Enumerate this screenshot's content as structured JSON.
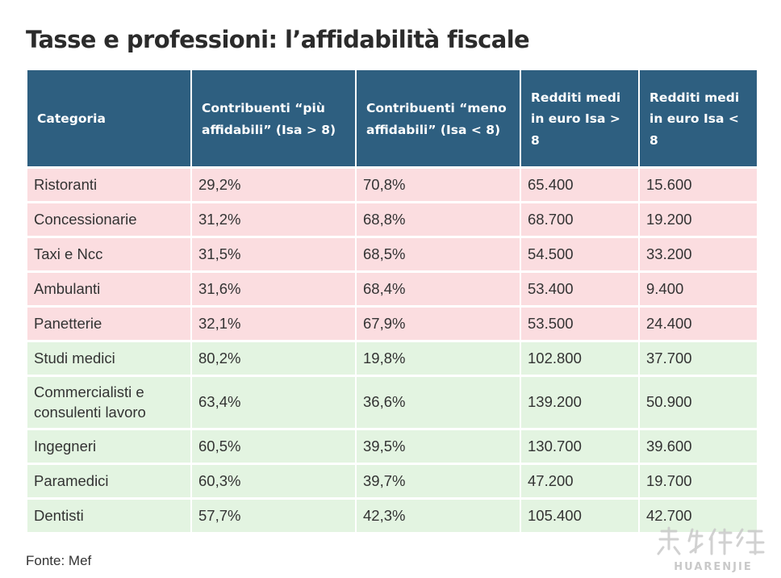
{
  "title": "Tasse e professioni: l’affidabilità fiscale",
  "source": "Fonte: Mef",
  "colors": {
    "header_bg": "#2e5f80",
    "header_text": "#ffffff",
    "row_low_reliability": "#fbdde0",
    "row_high_reliability": "#e3f4e1"
  },
  "chart_data": {
    "type": "table",
    "title": "Tasse e professioni: l’affidabilità fiscale",
    "columns": [
      "Categoria",
      "Contribuenti “più affidabili” (Isa > 8)",
      "Contribuenti “meno affidabili” (Isa < 8)",
      "Redditi medi in euro Isa > 8",
      "Redditi medi in euro Isa < 8"
    ],
    "rows": [
      {
        "categoria": "Ristoranti",
        "piu": "29,2%",
        "meno": "70,8%",
        "redditi_alto": "65.400",
        "redditi_basso": "15.600",
        "group": "red"
      },
      {
        "categoria": "Concessionarie",
        "piu": "31,2%",
        "meno": "68,8%",
        "redditi_alto": "68.700",
        "redditi_basso": "19.200",
        "group": "red"
      },
      {
        "categoria": "Taxi e Ncc",
        "piu": "31,5%",
        "meno": "68,5%",
        "redditi_alto": "54.500",
        "redditi_basso": "33.200",
        "group": "red"
      },
      {
        "categoria": "Ambulanti",
        "piu": "31,6%",
        "meno": "68,4%",
        "redditi_alto": "53.400",
        "redditi_basso": "9.400",
        "group": "red"
      },
      {
        "categoria": "Panetterie",
        "piu": "32,1%",
        "meno": "67,9%",
        "redditi_alto": "53.500",
        "redditi_basso": "24.400",
        "group": "red"
      },
      {
        "categoria": "Studi medici",
        "piu": "80,2%",
        "meno": "19,8%",
        "redditi_alto": "102.800",
        "redditi_basso": "37.700",
        "group": "green"
      },
      {
        "categoria": "Commercialisti e consulenti lavoro",
        "piu": "63,4%",
        "meno": "36,6%",
        "redditi_alto": "139.200",
        "redditi_basso": "50.900",
        "group": "green"
      },
      {
        "categoria": "Ingegneri",
        "piu": "60,5%",
        "meno": "39,5%",
        "redditi_alto": "130.700",
        "redditi_basso": "39.600",
        "group": "green"
      },
      {
        "categoria": "Paramedici",
        "piu": "60,3%",
        "meno": "39,7%",
        "redditi_alto": "47.200",
        "redditi_basso": "19.700",
        "group": "green"
      },
      {
        "categoria": "Dentisti",
        "piu": "57,7%",
        "meno": "42,3%",
        "redditi_alto": "105.400",
        "redditi_basso": "42.700",
        "group": "green"
      }
    ]
  },
  "watermark": {
    "text": "HUARENJIE",
    "icon": "huarenjie-logo"
  }
}
